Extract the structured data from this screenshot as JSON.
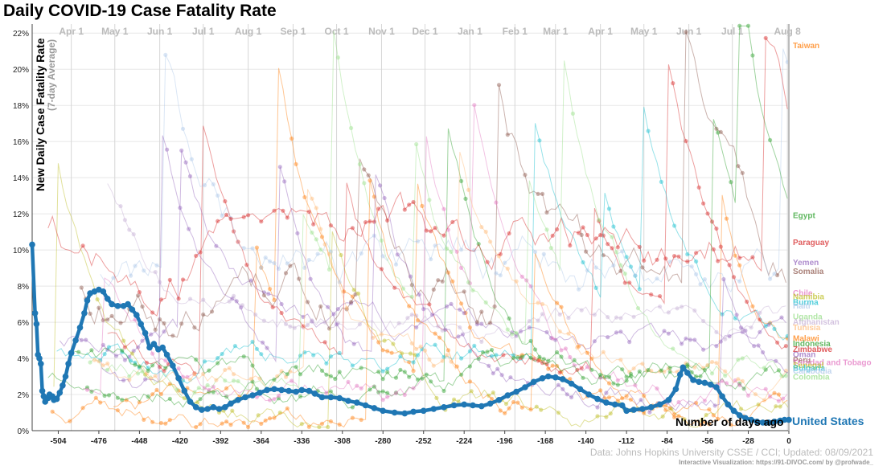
{
  "title": "Daily COVID-19 Case Fatality Rate",
  "source": "Data: Johns Hopkins University CSSE / CCI; Updated: 08/09/2021",
  "credit": "Interactive Visualization: https://91-DIVOC.com/ by @profwade_",
  "colors": {
    "us": "#1f77b4",
    "grid": "#e8e8e8",
    "axis": "#444444",
    "palette": [
      "#ff7f0e",
      "#2ca02c",
      "#d62728",
      "#9467bd",
      "#8c564b",
      "#e377c2",
      "#bcbd22",
      "#17becf",
      "#aec7e8",
      "#98df8a",
      "#c5b0d5",
      "#ffbb78"
    ]
  },
  "chart_data": {
    "type": "line",
    "title": "Daily COVID-19 Case Fatality Rate",
    "ylabel": "New Daily Case Fatality Rate",
    "ylabel_sub": "(7-day Average)",
    "xlabel": "Number of days ago",
    "xlim": [
      -522,
      0
    ],
    "ylim": [
      0,
      22.5
    ],
    "x_ticks": [
      -504,
      -476,
      -448,
      -420,
      -392,
      -364,
      -336,
      -308,
      -280,
      -252,
      -224,
      -196,
      -168,
      -140,
      -112,
      -84,
      -56,
      -28,
      0
    ],
    "y_ticks": [
      0,
      2,
      4,
      6,
      8,
      10,
      12,
      14,
      16,
      18,
      20,
      22
    ],
    "y_tick_labels": [
      "0%",
      "2%",
      "4%",
      "6%",
      "8%",
      "10%",
      "12%",
      "14%",
      "16%",
      "18%",
      "20%",
      "22%"
    ],
    "grid": true,
    "month_markers": [
      {
        "label": "Apr 1",
        "x": -495
      },
      {
        "label": "May 1",
        "x": -465
      },
      {
        "label": "Jun 1",
        "x": -434
      },
      {
        "label": "Jul 1",
        "x": -404
      },
      {
        "label": "Aug 1",
        "x": -373
      },
      {
        "label": "Sep 1",
        "x": -342
      },
      {
        "label": "Oct 1",
        "x": -312
      },
      {
        "label": "Nov 1",
        "x": -281
      },
      {
        "label": "Dec 1",
        "x": -251
      },
      {
        "label": "Jan 1",
        "x": -220
      },
      {
        "label": "Feb 1",
        "x": -189
      },
      {
        "label": "Mar 1",
        "x": -161
      },
      {
        "label": "Apr 1",
        "x": -130
      },
      {
        "label": "May 1",
        "x": -100
      },
      {
        "label": "Jun 1",
        "x": -69
      },
      {
        "label": "Jul 1",
        "x": -39
      },
      {
        "label": "Aug 8",
        "x": -1
      }
    ],
    "highlight_series": {
      "name": "United States",
      "points": [
        [
          -522,
          10.3
        ],
        [
          -520,
          6.5
        ],
        [
          -519,
          5.9
        ],
        [
          -518,
          4.2
        ],
        [
          -517,
          4.0
        ],
        [
          -516,
          3.7
        ],
        [
          -515,
          2.2
        ],
        [
          -514,
          1.9
        ],
        [
          -513,
          1.6
        ],
        [
          -511,
          1.8
        ],
        [
          -510,
          2.0
        ],
        [
          -508,
          1.9
        ],
        [
          -507,
          1.7
        ],
        [
          -505,
          1.75
        ],
        [
          -503,
          2.1
        ],
        [
          -501,
          2.5
        ],
        [
          -499,
          3.0
        ],
        [
          -497,
          3.7
        ],
        [
          -495,
          4.3
        ],
        [
          -492,
          5.0
        ],
        [
          -489,
          5.7
        ],
        [
          -486,
          6.5
        ],
        [
          -484,
          7.2
        ],
        [
          -482,
          7.6
        ],
        [
          -479,
          7.7
        ],
        [
          -476,
          7.8
        ],
        [
          -473,
          7.7
        ],
        [
          -470,
          7.3
        ],
        [
          -467,
          7.0
        ],
        [
          -463,
          6.9
        ],
        [
          -459,
          6.9
        ],
        [
          -456,
          7.0
        ],
        [
          -453,
          6.7
        ],
        [
          -450,
          6.4
        ],
        [
          -447,
          5.9
        ],
        [
          -444,
          5.4
        ],
        [
          -441,
          4.6
        ],
        [
          -438,
          4.8
        ],
        [
          -435,
          4.5
        ],
        [
          -432,
          4.6
        ],
        [
          -429,
          4.2
        ],
        [
          -425,
          3.6
        ],
        [
          -421,
          2.9
        ],
        [
          -417,
          2.2
        ],
        [
          -413,
          1.6
        ],
        [
          -409,
          1.3
        ],
        [
          -405,
          1.15
        ],
        [
          -401,
          1.2
        ],
        [
          -397,
          1.3
        ],
        [
          -393,
          1.2
        ],
        [
          -389,
          1.3
        ],
        [
          -385,
          1.5
        ],
        [
          -380,
          1.7
        ],
        [
          -375,
          1.85
        ],
        [
          -370,
          1.95
        ],
        [
          -365,
          2.1
        ],
        [
          -360,
          2.25
        ],
        [
          -355,
          2.3
        ],
        [
          -350,
          2.25
        ],
        [
          -345,
          2.2
        ],
        [
          -340,
          2.15
        ],
        [
          -336,
          2.25
        ],
        [
          -331,
          2.2
        ],
        [
          -327,
          2.05
        ],
        [
          -322,
          1.85
        ],
        [
          -316,
          1.85
        ],
        [
          -310,
          1.8
        ],
        [
          -304,
          1.65
        ],
        [
          -298,
          1.55
        ],
        [
          -292,
          1.4
        ],
        [
          -286,
          1.25
        ],
        [
          -280,
          1.1
        ],
        [
          -272,
          1.0
        ],
        [
          -265,
          0.95
        ],
        [
          -259,
          1.05
        ],
        [
          -252,
          1.1
        ],
        [
          -245,
          1.2
        ],
        [
          -238,
          1.3
        ],
        [
          -231,
          1.4
        ],
        [
          -224,
          1.45
        ],
        [
          -218,
          1.4
        ],
        [
          -212,
          1.35
        ],
        [
          -206,
          1.5
        ],
        [
          -200,
          1.7
        ],
        [
          -194,
          1.95
        ],
        [
          -188,
          2.15
        ],
        [
          -182,
          2.4
        ],
        [
          -176,
          2.7
        ],
        [
          -170,
          2.9
        ],
        [
          -166,
          3.0
        ],
        [
          -161,
          2.95
        ],
        [
          -156,
          2.85
        ],
        [
          -150,
          2.6
        ],
        [
          -144,
          2.3
        ],
        [
          -138,
          2.0
        ],
        [
          -132,
          1.75
        ],
        [
          -126,
          1.55
        ],
        [
          -120,
          1.45
        ],
        [
          -115,
          1.4
        ],
        [
          -112,
          1.1
        ],
        [
          -107,
          1.15
        ],
        [
          -101,
          1.2
        ],
        [
          -95,
          1.3
        ],
        [
          -89,
          1.45
        ],
        [
          -83,
          1.7
        ],
        [
          -78,
          2.3
        ],
        [
          -75,
          3.1
        ],
        [
          -73,
          3.5
        ],
        [
          -70,
          3.2
        ],
        [
          -66,
          2.8
        ],
        [
          -62,
          2.7
        ],
        [
          -58,
          2.65
        ],
        [
          -54,
          2.55
        ],
        [
          -50,
          2.4
        ],
        [
          -46,
          1.9
        ],
        [
          -42,
          1.45
        ],
        [
          -38,
          1.1
        ],
        [
          -34,
          0.85
        ],
        [
          -30,
          0.7
        ],
        [
          -26,
          0.6
        ],
        [
          -22,
          0.5
        ],
        [
          -18,
          0.45
        ],
        [
          -14,
          0.45
        ],
        [
          -10,
          0.5
        ],
        [
          -6,
          0.55
        ],
        [
          -3,
          0.6
        ],
        [
          0,
          0.6
        ]
      ]
    },
    "labeled_series_endpoints": [
      {
        "name": "Taiwan",
        "y": 21.3
      },
      {
        "name": "Egypt",
        "y": 11.9
      },
      {
        "name": "Paraguay",
        "y": 10.4
      },
      {
        "name": "Yemen",
        "y": 9.3
      },
      {
        "name": "Somalia",
        "y": 8.8
      },
      {
        "name": "Chile",
        "y": 7.6
      },
      {
        "name": "Namibia",
        "y": 7.4
      },
      {
        "name": "Burma",
        "y": 7.1
      },
      {
        "name": "Haiti",
        "y": 6.9
      },
      {
        "name": "Uganda",
        "y": 6.3
      },
      {
        "name": "Afghanistan",
        "y": 6.0
      },
      {
        "name": "Tunisia",
        "y": 5.7
      },
      {
        "name": "Malawi",
        "y": 5.1
      },
      {
        "name": "Indonesia",
        "y": 4.8
      },
      {
        "name": "Zimbabwe",
        "y": 4.5
      },
      {
        "name": "Oman",
        "y": 4.2
      },
      {
        "name": "Peru",
        "y": 3.9
      },
      {
        "name": "Trinidad and Tobago",
        "y": 3.75
      },
      {
        "name": "Senegal",
        "y": 3.6
      },
      {
        "name": "Bulgaria",
        "y": 3.45
      },
      {
        "name": "Cambodia",
        "y": 3.3
      },
      {
        "name": "Colombia",
        "y": 2.95
      }
    ]
  }
}
